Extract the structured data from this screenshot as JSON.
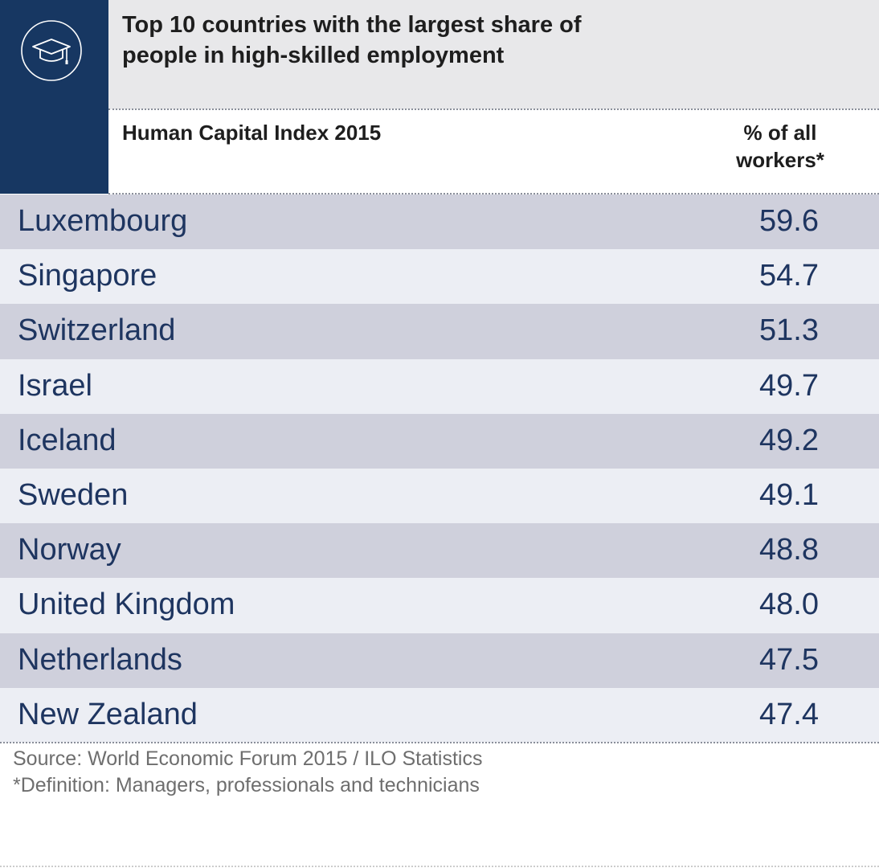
{
  "header": {
    "title_line1": "Top 10 countries with the largest share of",
    "title_line2": "people in high-skilled employment",
    "subtitle": "Human Capital Index 2015",
    "unit_line1": "% of all",
    "unit_line2": "workers*",
    "icon": "graduation-cap-icon"
  },
  "colors": {
    "brand_blue": "#173762",
    "row_dark": "#cfd0dc",
    "row_light": "#eceef4",
    "text": "#1e3560"
  },
  "chart_data": {
    "type": "table",
    "title": "Top 10 countries with the largest share of people in high-skilled employment",
    "columns": [
      "Human Capital Index 2015",
      "% of all workers*"
    ],
    "rows": [
      {
        "country": "Luxembourg",
        "value": "59.6"
      },
      {
        "country": "Singapore",
        "value": "54.7"
      },
      {
        "country": "Switzerland",
        "value": "51.3"
      },
      {
        "country": "Israel",
        "value": "49.7"
      },
      {
        "country": "Iceland",
        "value": "49.2"
      },
      {
        "country": "Sweden",
        "value": "49.1"
      },
      {
        "country": "Norway",
        "value": "48.8"
      },
      {
        "country": "United Kingdom",
        "value": "48.0"
      },
      {
        "country": "Netherlands",
        "value": "47.5"
      },
      {
        "country": "New Zealand",
        "value": "47.4"
      }
    ]
  },
  "footer": {
    "source": "Source: World Economic Forum 2015 / ILO Statistics",
    "definition": "*Definition: Managers, professionals and technicians"
  }
}
